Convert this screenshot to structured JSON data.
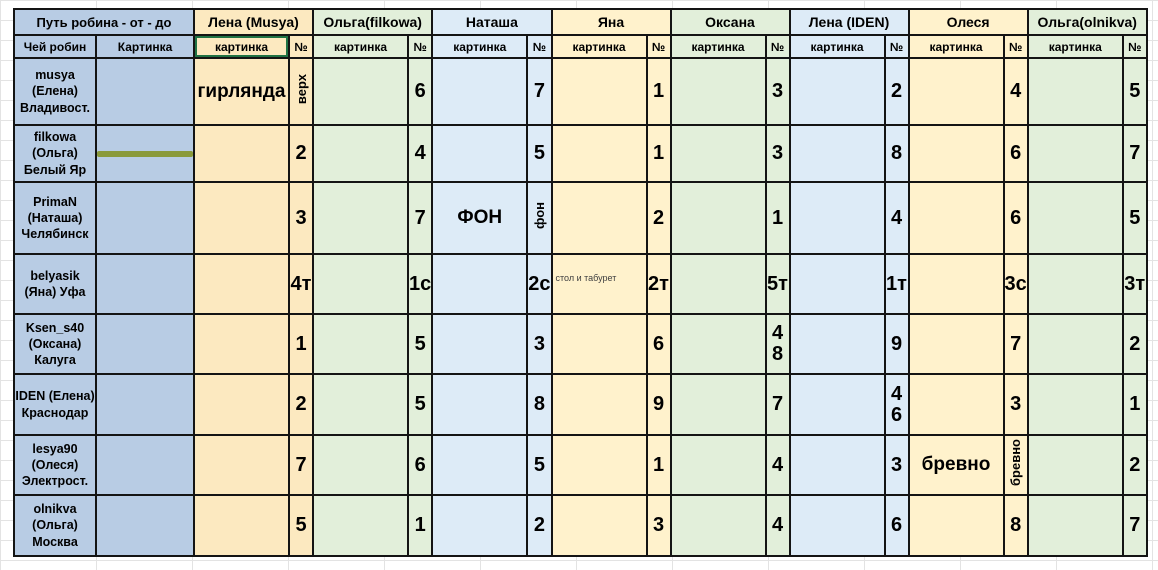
{
  "table": {
    "corner": {
      "title": "Путь робина - от - до",
      "col1": "Чей робин",
      "col2": "Картинка"
    },
    "sub_headers": {
      "pic": "картинка",
      "num": "№"
    },
    "left_color": "#b8cce4",
    "selection_color": "#1f7244",
    "groups": [
      {
        "name": "Лена (Musya)",
        "color": "#fce9c0"
      },
      {
        "name": "Ольга(filkowa)",
        "color": "#e2efda"
      },
      {
        "name": "Наташа",
        "color": "#ddebf7"
      },
      {
        "name": "Яна",
        "color": "#fff2cc"
      },
      {
        "name": "Оксана",
        "color": "#e2efda"
      },
      {
        "name": "Лена (IDEN)",
        "color": "#ddebf7"
      },
      {
        "name": "Олеся",
        "color": "#fff2cc"
      },
      {
        "name": "Ольга(olnikva)",
        "color": "#e2efda"
      }
    ],
    "rows": [
      {
        "owner": "musya\n(Елена)\nВладивост.",
        "owner_img": {
          "base": "#d9c8a3",
          "accent": "#bb5a40"
        },
        "cells": [
          {
            "text": "гирлянда",
            "num": "верх",
            "vert": true
          },
          {
            "img": {
              "base": "#cdbb9b",
              "accent": "#7fa649"
            },
            "shape": "sq",
            "num": "6"
          },
          {
            "img": {
              "base": "#c7b394",
              "accent": "#d1a33c"
            },
            "shape": "tall",
            "num": "7"
          },
          {
            "img": {
              "base": "#f0e4c6",
              "accent": "#d2ab52"
            },
            "shape": "sq",
            "num": "1"
          },
          {
            "img": {
              "base": "#c4b095",
              "accent": "#c04b33"
            },
            "shape": "tall",
            "num": "3"
          },
          {
            "img": {
              "base": "#cbbaa1",
              "accent": "#8a5a33"
            },
            "shape": "tall",
            "num": "2"
          },
          {
            "img": {
              "base": "#c2b197",
              "accent": "#d06a8c"
            },
            "shape": "sq",
            "num": "4"
          },
          {
            "img": {
              "base": "#c6b59b",
              "accent": "#c7a23f"
            },
            "shape": "tall",
            "num": "5"
          }
        ]
      },
      {
        "owner": "filkowa\n(Ольга)\nБелый Яр",
        "owner_img": {
          "base": "#f3efe0",
          "accent": "#b5453c",
          "frame": "#8a9a3b"
        },
        "cells": [
          {
            "img": {
              "base": "#fdf3e4",
              "accent": "#b5413a"
            },
            "shape": "wide",
            "num": "2"
          },
          {
            "img": {
              "base": "#f0e9d8",
              "accent": "#5b87b5"
            },
            "shape": "wide",
            "num": "4"
          },
          {
            "img": {
              "base": "#f3eef5",
              "accent": "#8aa0c8"
            },
            "shape": "wide",
            "num": "5"
          },
          {
            "img": {
              "base": "#fbf6ec",
              "accent": "#c23b2e"
            },
            "shape": "sq",
            "num": "1"
          },
          {
            "img": {
              "base": "#f5efdf",
              "accent": "#d8a62e"
            },
            "shape": "wide",
            "num": "3"
          },
          {
            "img": {
              "base": "#f7f3e8",
              "accent": "#a8a23a"
            },
            "shape": "tall",
            "num": "8"
          },
          {
            "img": {
              "base": "#f3eddc",
              "accent": "#c8952e"
            },
            "shape": "sq",
            "num": "6"
          },
          {
            "img": {
              "base": "#f2ece0",
              "accent": "#bb3b31"
            },
            "shape": "tall",
            "num": "7"
          }
        ]
      },
      {
        "owner": "PrimaN\n(Наташа)\nЧелябинск",
        "owner_img": {
          "base": "#c9a987",
          "accent": "#6b5a42"
        },
        "cells": [
          {
            "img": {
              "base": "#d3b794",
              "accent": "#6f8f55"
            },
            "shape": "tall",
            "num": "3"
          },
          {
            "img": {
              "base": "#cdb291",
              "accent": "#8a7354"
            },
            "shape": "tall",
            "num": "7"
          },
          {
            "text": "ФОН",
            "num": "фон",
            "vert": true
          },
          {
            "img": {
              "base": "#d3b794",
              "accent": "#6b87a8"
            },
            "shape": "tall",
            "num": "2"
          },
          {
            "img": {
              "base": "#d2b590",
              "accent": "#93a9c0"
            },
            "shape": "tall",
            "num": "1"
          },
          {
            "img": {
              "base": "#cfb28c",
              "accent": "#c05f5f"
            },
            "shape": "tall",
            "num": "4"
          },
          {
            "img": {
              "base": "#e4d3bb",
              "accent": "#c98ba6"
            },
            "shape": "tall",
            "num": "6"
          },
          {
            "img": {
              "base": "#d3b794",
              "accent": "#7a97b5"
            },
            "shape": "tall",
            "num": "5"
          }
        ]
      },
      {
        "owner": "belyasik\n(Яна) Уфа",
        "owner_img": {
          "base": "#e9e1d2",
          "accent": "#b0453c"
        },
        "cells": [
          {
            "img": {
              "base": "#f5e8d3",
              "accent": "#c8a468"
            },
            "shape": "wide",
            "num": "4т"
          },
          {
            "img": {
              "base": "#d8cfb8",
              "accent": "#5a4632"
            },
            "shape": "sq",
            "num": "1с"
          },
          {
            "img": {
              "base": "#d5cbb2",
              "accent": "#8a7340"
            },
            "shape": "sq",
            "num": "2с"
          },
          {
            "img": {
              "base": "#eee6e2",
              "accent": "#7ba3b8"
            },
            "shape": "tall",
            "caption": "стол и табурет",
            "num": "2т"
          },
          {
            "img": {
              "base": "#dceadf",
              "accent": "#c2596e"
            },
            "shape": "wide",
            "num": "5т"
          },
          {
            "img": {
              "base": "#cfdceb",
              "accent": "#b5885a"
            },
            "shape": "tall",
            "num": "1т"
          },
          {
            "img": {
              "base": "#f3e3c0",
              "accent": "#3f3428"
            },
            "shape": "sq",
            "num": "3с"
          },
          {
            "img": {
              "base": "#ca4a3e",
              "accent": "#f1e9df"
            },
            "shape": "sq",
            "num": "3т"
          }
        ]
      },
      {
        "owner": "Ksen_s40\n(Оксана)\nКалуга",
        "owner_img": {
          "base": "#e0a53c",
          "accent": "#b5552e"
        },
        "cells": [
          {
            "img": {
              "base": "#efe3cc",
              "accent": "#a9b23c"
            },
            "shape": "sq",
            "num": "1"
          },
          {
            "img": {
              "base": "#f1e3c8",
              "accent": "#c54a2e"
            },
            "shape": "sq",
            "num": "5"
          },
          {
            "img": {
              "base": "#f3e9d3",
              "accent": "#d2842e"
            },
            "shape": "sq",
            "num": "3"
          },
          {
            "img": {
              "base": "#efe9d5",
              "accent": "#76a83c"
            },
            "shape": "sq",
            "num": "6"
          },
          {
            "img": {
              "base": "#eee2cc",
              "accent": "#cc5a2c"
            },
            "shape": "wide",
            "num": "4\n8"
          },
          {
            "img": {
              "base": "#f0e4cf",
              "accent": "#bf4a30"
            },
            "shape": "sq",
            "num": "9"
          },
          {
            "img": {
              "base": "#e9edda",
              "accent": "#5f9140"
            },
            "shape": "sq",
            "num": "7"
          },
          {
            "img": {
              "base": "#edf1e0",
              "accent": "#6fa33a"
            },
            "shape": "sq",
            "num": "2"
          }
        ]
      },
      {
        "owner": "IDEN (Елена)\nКраснодар",
        "owner_img": {
          "base": "#eeb9c7",
          "accent": "#d9919e"
        },
        "cells": [
          {
            "img": {
              "base": "#f0cbd7",
              "accent": "#9a5f35"
            },
            "shape": "wide",
            "num": "2"
          },
          {
            "img": {
              "base": "#f4d6df",
              "accent": "#5f3a24"
            },
            "shape": "wide",
            "num": "5"
          },
          {
            "img": {
              "base": "#f0cdd9",
              "accent": "#c08a48"
            },
            "shape": "tall",
            "num": "8"
          },
          {
            "img": {
              "base": "#f6dde4",
              "accent": "#d4a94e"
            },
            "shape": "full",
            "num": "9"
          },
          {
            "img": {
              "base": "#f2ccd8",
              "accent": "#8a6a46"
            },
            "shape": "wide",
            "num": "7"
          },
          {
            "img": {
              "base": "#f4d0da",
              "accent": "#6e4226"
            },
            "shape": "wide",
            "num": "4\n6"
          },
          {
            "img": {
              "base": "#f2d3dc",
              "accent": "#7a4a2a"
            },
            "shape": "wide",
            "num": "3"
          },
          {
            "img": {
              "base": "#f0cbd7",
              "accent": "#b03a4a"
            },
            "shape": "sq",
            "num": "1"
          }
        ]
      },
      {
        "owner": "lesya90\n(Олеся)\nЭлектрост.",
        "owner_img": {
          "base": "#efe8d6",
          "accent": "#86b04c"
        },
        "cells": [
          {
            "img": {
              "base": "#f3ead6",
              "accent": "#7fae3f"
            },
            "shape": "sq",
            "num": "7"
          },
          {
            "img": {
              "base": "#e6f0e2",
              "accent": "#5f9bb0"
            },
            "shape": "sq",
            "num": "6"
          },
          {
            "img": {
              "base": "#eef3ea",
              "accent": "#6fa83c"
            },
            "shape": "sq",
            "num": "5"
          },
          {
            "img": {
              "base": "#f0ead8",
              "accent": "#82b04a"
            },
            "shape": "sq",
            "num": "1"
          },
          {
            "img": {
              "base": "#eaf2e4",
              "accent": "#9ab83e"
            },
            "shape": "sq",
            "num": "4"
          },
          {
            "img": {
              "base": "#eef4f8",
              "accent": "#5a88b8"
            },
            "shape": "sq",
            "num": "3"
          },
          {
            "text": "бревно",
            "num": "бревно",
            "vert": true
          },
          {
            "img": {
              "base": "#eff3e6",
              "accent": "#7fae3f"
            },
            "shape": "sq",
            "num": "2"
          }
        ]
      },
      {
        "owner": "olnikva\n(Ольга)\nМосква",
        "owner_img": {
          "base": "#b8b3a3",
          "accent": "#6b7263"
        },
        "cells": [
          {
            "img": {
              "base": "#ded8c8",
              "accent": "#8a6f4a"
            },
            "shape": "wide",
            "num": "5"
          },
          {
            "img": {
              "base": "#dfe3da",
              "accent": "#757f72"
            },
            "shape": "sq",
            "num": "1"
          },
          {
            "img": {
              "base": "#ddd5c5",
              "accent": "#9a6a42"
            },
            "shape": "tall",
            "num": "2"
          },
          {
            "img": {
              "base": "#e2dccc",
              "accent": "#8a6f4a"
            },
            "shape": "tall",
            "num": "3"
          },
          {
            "img": {
              "base": "#e6e2d6",
              "accent": "#a8a093"
            },
            "shape": "sq",
            "num": "4"
          },
          {
            "img": {
              "base": "#dce0d8",
              "accent": "#8a7a5a"
            },
            "shape": "tall",
            "num": "6"
          },
          {
            "img": {
              "base": "#dcd8cc",
              "accent": "#c8c23a"
            },
            "shape": "sq",
            "num": "8"
          },
          {
            "img": {
              "base": "#d8dcd2",
              "accent": "#8a7a5a"
            },
            "shape": "wide",
            "num": "7"
          }
        ]
      }
    ]
  }
}
